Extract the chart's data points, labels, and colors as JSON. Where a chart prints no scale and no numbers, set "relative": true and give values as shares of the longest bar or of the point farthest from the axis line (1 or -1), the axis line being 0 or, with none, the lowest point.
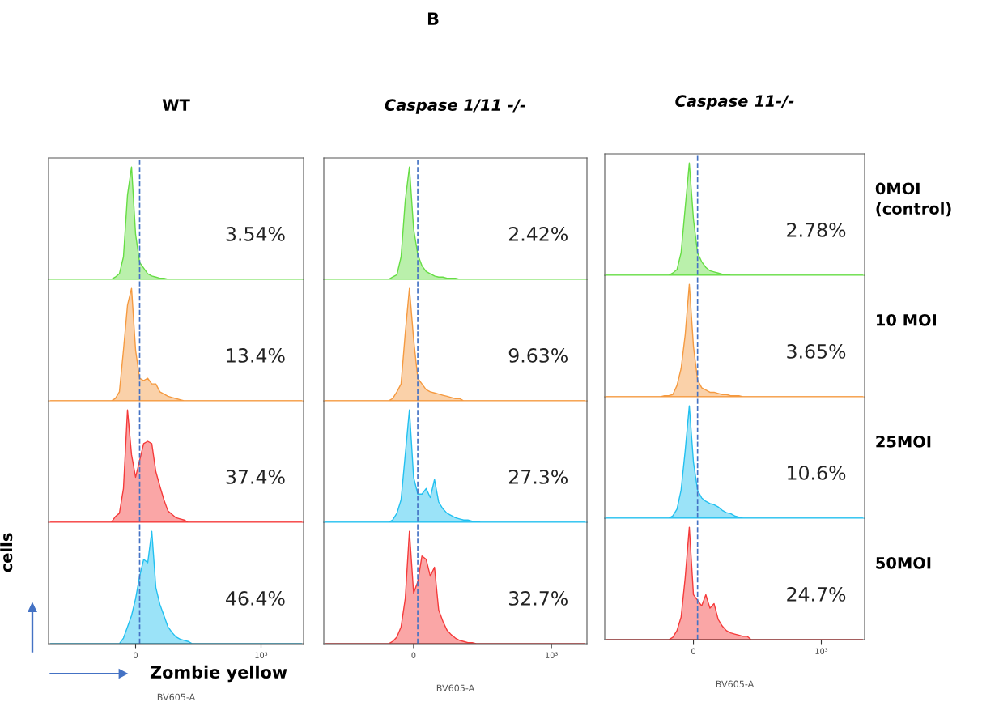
{
  "chart_data": [
    {
      "type": "area",
      "title": "WT",
      "relative": true,
      "categories": [
        null,
        null,
        null,
        null,
        null,
        null,
        null,
        null,
        null,
        null,
        null,
        null,
        null,
        null,
        null,
        null,
        null,
        null,
        null,
        null,
        null,
        null,
        null,
        null,
        null,
        null,
        null,
        null,
        null,
        null,
        null,
        null,
        null,
        null,
        null,
        null,
        null,
        null,
        null,
        null,
        null,
        null,
        null,
        null,
        null,
        null,
        null,
        null,
        null,
        null,
        null,
        null,
        null,
        null,
        null,
        null,
        null,
        null,
        null,
        null,
        null,
        null,
        null
      ],
      "tick_labels": false,
      "annotations": [
        "3.54%",
        "B"
      ],
      "series": [
        {
          "color": "#66dd44",
          "values": [
            0,
            0,
            0,
            0,
            0,
            0,
            0,
            0,
            0,
            0,
            0,
            0,
            0,
            0,
            0,
            0,
            0.02,
            0.05,
            0.2,
            0.75,
            1,
            0.4,
            0.15,
            0.1,
            0.05,
            0.03,
            0.02,
            0.01,
            0.01,
            0,
            0,
            0,
            0,
            0,
            0,
            0,
            0,
            0,
            0,
            0,
            0,
            0,
            0,
            0,
            0,
            0,
            0,
            0,
            0,
            0,
            0,
            0,
            0,
            0,
            0,
            0,
            0,
            0,
            0,
            0,
            0,
            0,
            0
          ]
        }
      ]
    },
    {
      "type": "area",
      "title": "Caspase 1/11 -/-",
      "relative": true,
      "categories": [
        null,
        null,
        null,
        null,
        null,
        null,
        null,
        null,
        null,
        null,
        null,
        null,
        null,
        null,
        null,
        null,
        null,
        null,
        null,
        null,
        null,
        null,
        null,
        null,
        null,
        null,
        null,
        null,
        null,
        null,
        null,
        null,
        null,
        null,
        null,
        null,
        null,
        null,
        null,
        null,
        null,
        null,
        null,
        null,
        null,
        null,
        null,
        null,
        null,
        null,
        null,
        null,
        null,
        null,
        null,
        null,
        null,
        null,
        null,
        null,
        null,
        null,
        null
      ],
      "tick_labels": false,
      "annotations": [
        "2.42%"
      ],
      "series": [
        {
          "color": "#66dd44",
          "values": [
            0,
            0,
            0,
            0,
            0,
            0,
            0,
            0,
            0,
            0,
            0,
            0,
            0,
            0,
            0,
            0,
            0.02,
            0.04,
            0.2,
            0.7,
            1,
            0.45,
            0.22,
            0.12,
            0.07,
            0.05,
            0.03,
            0.02,
            0.02,
            0.01,
            0.01,
            0.01,
            0,
            0,
            0,
            0,
            0,
            0,
            0,
            0,
            0,
            0,
            0,
            0,
            0,
            0,
            0,
            0,
            0,
            0,
            0,
            0,
            0,
            0,
            0,
            0,
            0,
            0,
            0,
            0,
            0,
            0,
            0
          ]
        }
      ]
    },
    {
      "type": "area",
      "title": "Caspase 11-/-",
      "y2label": "0MOI\n(control)",
      "relative": true,
      "categories": [
        null,
        null,
        null,
        null,
        null,
        null,
        null,
        null,
        null,
        null,
        null,
        null,
        null,
        null,
        null,
        null,
        null,
        null,
        null,
        null,
        null,
        null,
        null,
        null,
        null,
        null,
        null,
        null,
        null,
        null,
        null,
        null,
        null,
        null,
        null,
        null,
        null,
        null,
        null,
        null,
        null,
        null,
        null,
        null,
        null,
        null,
        null,
        null,
        null,
        null,
        null,
        null,
        null,
        null,
        null,
        null,
        null,
        null,
        null,
        null,
        null,
        null,
        null
      ],
      "tick_labels": false,
      "annotations": [
        "2.78%"
      ],
      "series": [
        {
          "color": "#66dd44",
          "values": [
            0,
            0,
            0,
            0,
            0,
            0,
            0,
            0,
            0,
            0,
            0,
            0,
            0,
            0,
            0,
            0,
            0.02,
            0.05,
            0.2,
            0.6,
            1,
            0.5,
            0.2,
            0.12,
            0.07,
            0.04,
            0.03,
            0.02,
            0.01,
            0.01,
            0,
            0,
            0,
            0,
            0,
            0,
            0,
            0,
            0,
            0,
            0,
            0,
            0,
            0,
            0,
            0,
            0,
            0,
            0,
            0,
            0,
            0,
            0,
            0,
            0,
            0,
            0,
            0,
            0,
            0,
            0,
            0,
            0
          ]
        }
      ]
    },
    {
      "type": "area",
      "relative": true,
      "categories": [
        null,
        null,
        null,
        null,
        null,
        null,
        null,
        null,
        null,
        null,
        null,
        null,
        null,
        null,
        null,
        null,
        null,
        null,
        null,
        null,
        null,
        null,
        null,
        null,
        null,
        null,
        null,
        null,
        null,
        null,
        null,
        null,
        null,
        null,
        null,
        null,
        null,
        null,
        null,
        null,
        null,
        null,
        null,
        null,
        null,
        null,
        null,
        null,
        null,
        null,
        null,
        null,
        null,
        null,
        null,
        null,
        null,
        null,
        null,
        null,
        null,
        null,
        null
      ],
      "tick_labels": false,
      "annotations": [
        "13.4%"
      ],
      "series": [
        {
          "color": "#f59a40",
          "values": [
            0,
            0,
            0,
            0,
            0,
            0,
            0,
            0,
            0,
            0,
            0,
            0,
            0,
            0,
            0,
            0,
            0.02,
            0.08,
            0.45,
            0.85,
            1,
            0.45,
            0.2,
            0.18,
            0.2,
            0.15,
            0.15,
            0.08,
            0.06,
            0.04,
            0.03,
            0.02,
            0.01,
            0,
            0,
            0,
            0,
            0,
            0,
            0,
            0,
            0,
            0,
            0,
            0,
            0,
            0,
            0,
            0,
            0,
            0,
            0,
            0,
            0,
            0,
            0,
            0,
            0,
            0,
            0,
            0,
            0,
            0
          ]
        }
      ]
    },
    {
      "type": "area",
      "relative": true,
      "categories": [
        null,
        null,
        null,
        null,
        null,
        null,
        null,
        null,
        null,
        null,
        null,
        null,
        null,
        null,
        null,
        null,
        null,
        null,
        null,
        null,
        null,
        null,
        null,
        null,
        null,
        null,
        null,
        null,
        null,
        null,
        null,
        null,
        null,
        null,
        null,
        null,
        null,
        null,
        null,
        null,
        null,
        null,
        null,
        null,
        null,
        null,
        null,
        null,
        null,
        null,
        null,
        null,
        null,
        null,
        null,
        null,
        null,
        null,
        null,
        null,
        null,
        null,
        null
      ],
      "tick_labels": false,
      "annotations": [
        "9.63%"
      ],
      "series": [
        {
          "color": "#f59a40",
          "values": [
            0,
            0,
            0,
            0,
            0,
            0,
            0,
            0,
            0,
            0,
            0,
            0,
            0,
            0,
            0,
            0,
            0.02,
            0.08,
            0.15,
            0.6,
            1,
            0.55,
            0.2,
            0.15,
            0.1,
            0.08,
            0.07,
            0.06,
            0.05,
            0.04,
            0.03,
            0.02,
            0.02,
            0,
            0,
            0,
            0,
            0,
            0,
            0,
            0,
            0,
            0,
            0,
            0,
            0,
            0,
            0,
            0,
            0,
            0,
            0,
            0,
            0,
            0,
            0,
            0,
            0,
            0,
            0,
            0,
            0,
            0
          ]
        }
      ]
    },
    {
      "type": "area",
      "y2label": "10 MOI",
      "relative": true,
      "categories": [
        null,
        null,
        null,
        null,
        null,
        null,
        null,
        null,
        null,
        null,
        null,
        null,
        null,
        null,
        null,
        null,
        null,
        null,
        null,
        null,
        null,
        null,
        null,
        null,
        null,
        null,
        null,
        null,
        null,
        null,
        null,
        null,
        null,
        null,
        null,
        null,
        null,
        null,
        null,
        null,
        null,
        null,
        null,
        null,
        null,
        null,
        null,
        null,
        null,
        null,
        null,
        null,
        null,
        null,
        null,
        null,
        null,
        null,
        null,
        null,
        null,
        null,
        null
      ],
      "tick_labels": false,
      "annotations": [
        "3.65%"
      ],
      "series": [
        {
          "color": "#f59a40",
          "values": [
            0,
            0,
            0,
            0,
            0,
            0,
            0,
            0,
            0,
            0,
            0,
            0,
            0,
            0,
            0.01,
            0.01,
            0.02,
            0.1,
            0.25,
            0.55,
            1,
            0.45,
            0.15,
            0.08,
            0.06,
            0.04,
            0.04,
            0.03,
            0.02,
            0.02,
            0.01,
            0.01,
            0.01,
            0,
            0,
            0,
            0,
            0,
            0,
            0,
            0,
            0,
            0,
            0,
            0,
            0,
            0,
            0,
            0,
            0,
            0,
            0,
            0,
            0,
            0,
            0,
            0,
            0,
            0,
            0,
            0,
            0,
            0
          ]
        }
      ]
    },
    {
      "type": "area",
      "relative": true,
      "categories": [
        null,
        null,
        null,
        null,
        null,
        null,
        null,
        null,
        null,
        null,
        null,
        null,
        null,
        null,
        null,
        null,
        null,
        null,
        null,
        null,
        null,
        null,
        null,
        null,
        null,
        null,
        null,
        null,
        null,
        null,
        null,
        null,
        null,
        null,
        null,
        null,
        null,
        null,
        null,
        null,
        null,
        null,
        null,
        null,
        null,
        null,
        null,
        null,
        null,
        null,
        null,
        null,
        null,
        null,
        null,
        null,
        null,
        null,
        null,
        null,
        null,
        null,
        null
      ],
      "tick_labels": false,
      "annotations": [
        "37.4%"
      ],
      "series": [
        {
          "color": "#f53a3a",
          "values": [
            0,
            0,
            0,
            0,
            0,
            0,
            0,
            0,
            0,
            0,
            0,
            0,
            0,
            0,
            0,
            0,
            0.05,
            0.08,
            0.3,
            1,
            0.6,
            0.4,
            0.55,
            0.7,
            0.72,
            0.7,
            0.45,
            0.32,
            0.2,
            0.1,
            0.07,
            0.04,
            0.03,
            0.02,
            0,
            0,
            0,
            0,
            0,
            0,
            0,
            0,
            0,
            0,
            0,
            0,
            0,
            0,
            0,
            0,
            0,
            0,
            0,
            0,
            0,
            0,
            0,
            0,
            0,
            0,
            0,
            0,
            0
          ]
        }
      ]
    },
    {
      "type": "area",
      "relative": true,
      "categories": [
        null,
        null,
        null,
        null,
        null,
        null,
        null,
        null,
        null,
        null,
        null,
        null,
        null,
        null,
        null,
        null,
        null,
        null,
        null,
        null,
        null,
        null,
        null,
        null,
        null,
        null,
        null,
        null,
        null,
        null,
        null,
        null,
        null,
        null,
        null,
        null,
        null,
        null,
        null,
        null,
        null,
        null,
        null,
        null,
        null,
        null,
        null,
        null,
        null,
        null,
        null,
        null,
        null,
        null,
        null,
        null,
        null,
        null,
        null,
        null,
        null,
        null,
        null
      ],
      "tick_labels": false,
      "annotations": [
        "27.3%"
      ],
      "series": [
        {
          "color": "#22c0f0",
          "values": [
            0,
            0,
            0,
            0,
            0,
            0,
            0,
            0,
            0,
            0,
            0,
            0,
            0,
            0,
            0,
            0,
            0.02,
            0.08,
            0.2,
            0.6,
            1,
            0.4,
            0.25,
            0.25,
            0.3,
            0.22,
            0.38,
            0.18,
            0.12,
            0.08,
            0.06,
            0.04,
            0.03,
            0.02,
            0.02,
            0.01,
            0.01,
            0,
            0,
            0,
            0,
            0,
            0,
            0,
            0,
            0,
            0,
            0,
            0,
            0,
            0,
            0,
            0,
            0,
            0,
            0,
            0,
            0,
            0,
            0,
            0,
            0,
            0
          ]
        }
      ]
    },
    {
      "type": "area",
      "y2label": "25MOI",
      "relative": true,
      "categories": [
        null,
        null,
        null,
        null,
        null,
        null,
        null,
        null,
        null,
        null,
        null,
        null,
        null,
        null,
        null,
        null,
        null,
        null,
        null,
        null,
        null,
        null,
        null,
        null,
        null,
        null,
        null,
        null,
        null,
        null,
        null,
        null,
        null,
        null,
        null,
        null,
        null,
        null,
        null,
        null,
        null,
        null,
        null,
        null,
        null,
        null,
        null,
        null,
        null,
        null,
        null,
        null,
        null,
        null,
        null,
        null,
        null,
        null,
        null,
        null,
        null,
        null,
        null
      ],
      "tick_labels": false,
      "annotations": [
        "10.6%"
      ],
      "series": [
        {
          "color": "#22c0f0",
          "values": [
            0,
            0,
            0,
            0,
            0,
            0,
            0,
            0,
            0,
            0,
            0,
            0,
            0,
            0,
            0,
            0,
            0.02,
            0.08,
            0.25,
            0.6,
            1,
            0.5,
            0.25,
            0.18,
            0.15,
            0.13,
            0.12,
            0.1,
            0.07,
            0.05,
            0.04,
            0.02,
            0.01,
            0,
            0,
            0,
            0,
            0,
            0,
            0,
            0,
            0,
            0,
            0,
            0,
            0,
            0,
            0,
            0,
            0,
            0,
            0,
            0,
            0,
            0,
            0,
            0,
            0,
            0,
            0,
            0,
            0,
            0
          ]
        }
      ]
    },
    {
      "type": "area",
      "relative": true,
      "categories": [
        null,
        null,
        null,
        null,
        null,
        null,
        null,
        null,
        null,
        null,
        null,
        null,
        null,
        null,
        null,
        null,
        null,
        null,
        null,
        null,
        null,
        "0",
        null,
        null,
        null,
        null,
        null,
        null,
        null,
        null,
        null,
        null,
        null,
        null,
        null,
        null,
        null,
        null,
        null,
        null,
        null,
        null,
        null,
        null,
        null,
        null,
        null,
        null,
        null,
        null,
        null,
        null,
        "10³",
        null,
        null,
        null,
        null,
        null,
        null,
        null,
        null,
        null,
        null
      ],
      "tick_labels": "x",
      "xlabel": "BV605-A",
      "ylabel": "cells",
      "annotations": [
        "46.4%",
        "Zombie yellow"
      ],
      "series": [
        {
          "color": "#22c0f0",
          "values": [
            0,
            0,
            0,
            0,
            0,
            0,
            0,
            0,
            0,
            0,
            0,
            0,
            0,
            0,
            0,
            0,
            0,
            0,
            0.05,
            0.15,
            0.25,
            0.4,
            0.6,
            0.75,
            0.72,
            1,
            0.5,
            0.35,
            0.25,
            0.15,
            0.1,
            0.06,
            0.04,
            0.03,
            0.02,
            0,
            0,
            0,
            0,
            0,
            0,
            0,
            0,
            0,
            0,
            0,
            0,
            0,
            0,
            0,
            0,
            0,
            0,
            0,
            0,
            0,
            0,
            0,
            0,
            0,
            0,
            0,
            0
          ]
        }
      ]
    },
    {
      "type": "area",
      "relative": true,
      "categories": [
        null,
        null,
        null,
        null,
        null,
        null,
        null,
        null,
        null,
        null,
        null,
        null,
        null,
        null,
        null,
        null,
        null,
        null,
        null,
        null,
        null,
        "0",
        null,
        null,
        null,
        null,
        null,
        null,
        null,
        null,
        null,
        null,
        null,
        null,
        null,
        null,
        null,
        null,
        null,
        null,
        null,
        null,
        null,
        null,
        null,
        null,
        null,
        null,
        null,
        null,
        null,
        null,
        null,
        null,
        "10³",
        null,
        null,
        null,
        null,
        null,
        null,
        null,
        null
      ],
      "tick_labels": "x",
      "xlabel": "BV605-A",
      "annotations": [
        "32.7%"
      ],
      "series": [
        {
          "color": "#f53a3a",
          "values": [
            0,
            0,
            0,
            0,
            0,
            0,
            0,
            0,
            0,
            0,
            0,
            0,
            0,
            0,
            0,
            0,
            0.02,
            0.06,
            0.15,
            0.4,
            1,
            0.45,
            0.55,
            0.78,
            0.75,
            0.6,
            0.68,
            0.3,
            0.2,
            0.12,
            0.08,
            0.05,
            0.03,
            0.02,
            0.01,
            0.01,
            0,
            0,
            0,
            0,
            0,
            0,
            0,
            0,
            0,
            0,
            0,
            0,
            0,
            0,
            0,
            0,
            0,
            0,
            0,
            0,
            0,
            0,
            0,
            0,
            0,
            0,
            0
          ]
        }
      ]
    },
    {
      "type": "area",
      "y2label": "50MOI",
      "relative": true,
      "categories": [
        null,
        null,
        null,
        null,
        null,
        null,
        null,
        null,
        null,
        null,
        null,
        null,
        null,
        null,
        null,
        null,
        null,
        null,
        null,
        null,
        null,
        "0",
        null,
        null,
        null,
        null,
        null,
        null,
        null,
        null,
        null,
        null,
        null,
        null,
        null,
        null,
        null,
        null,
        null,
        null,
        null,
        null,
        null,
        null,
        null,
        null,
        null,
        null,
        null,
        null,
        null,
        null,
        "10³",
        null,
        null,
        null,
        null,
        null,
        null,
        null,
        null,
        null,
        null
      ],
      "tick_labels": "x",
      "xlabel": "BV605-A",
      "annotations": [
        "24.7%"
      ],
      "series": [
        {
          "color": "#f53a3a",
          "values": [
            0,
            0,
            0,
            0,
            0,
            0,
            0,
            0,
            0,
            0,
            0,
            0,
            0,
            0,
            0,
            0,
            0.02,
            0.08,
            0.2,
            0.55,
            1,
            0.4,
            0.35,
            0.3,
            0.4,
            0.28,
            0.32,
            0.18,
            0.12,
            0.08,
            0.06,
            0.05,
            0.04,
            0.03,
            0.03,
            0,
            0,
            0,
            0,
            0,
            0,
            0,
            0,
            0,
            0,
            0,
            0,
            0,
            0,
            0,
            0,
            0,
            0,
            0,
            0,
            0,
            0,
            0,
            0,
            0,
            0,
            0,
            0
          ]
        }
      ]
    }
  ]
}
